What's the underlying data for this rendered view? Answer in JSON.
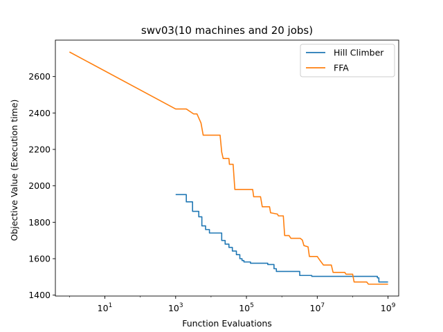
{
  "chart_data": {
    "type": "line",
    "title": "swv03(10 machines and 20 jobs)",
    "xlabel": "Function Evaluations",
    "ylabel": "Objective Value (Execution time)",
    "xscale": "log",
    "xlim": [
      0.4,
      2000000000
    ],
    "ylim": [
      1395,
      2800
    ],
    "xticks": [
      {
        "value": 10,
        "base": "10",
        "exp": "1"
      },
      {
        "value": 1000,
        "base": "10",
        "exp": "3"
      },
      {
        "value": 100000,
        "base": "10",
        "exp": "5"
      },
      {
        "value": 10000000,
        "base": "10",
        "exp": "7"
      },
      {
        "value": 1000000000,
        "base": "10",
        "exp": "9"
      }
    ],
    "yticks": [
      1400,
      1600,
      1800,
      2000,
      2200,
      2400,
      2600
    ],
    "grid": false,
    "legend_position": "top-right",
    "series": [
      {
        "name": "Hill Climber",
        "color": "#1f77b4",
        "step": true,
        "points": [
          [
            1000,
            1952
          ],
          [
            2000,
            1912
          ],
          [
            3000,
            1860
          ],
          [
            4500,
            1830
          ],
          [
            5500,
            1780
          ],
          [
            7000,
            1760
          ],
          [
            9000,
            1741
          ],
          [
            20000,
            1700
          ],
          [
            25000,
            1680
          ],
          [
            32000,
            1662
          ],
          [
            40000,
            1642
          ],
          [
            52000,
            1622
          ],
          [
            65000,
            1600
          ],
          [
            75000,
            1590
          ],
          [
            85000,
            1582
          ],
          [
            130000,
            1575
          ],
          [
            400000,
            1568
          ],
          [
            600000,
            1545
          ],
          [
            700000,
            1530
          ],
          [
            3200000,
            1508
          ],
          [
            7000000,
            1503
          ],
          [
            90000000,
            1503
          ],
          [
            500000000,
            1495
          ],
          [
            550000000,
            1472
          ],
          [
            1000000000,
            1472
          ]
        ]
      },
      {
        "name": "FFA",
        "color": "#ff7f0e",
        "step": false,
        "points": [
          [
            1,
            2735
          ],
          [
            1000,
            2422
          ],
          [
            2000,
            2422
          ],
          [
            3200,
            2395
          ],
          [
            4000,
            2395
          ],
          [
            5200,
            2345
          ],
          [
            6000,
            2278
          ],
          [
            18000,
            2278
          ],
          [
            20000,
            2185
          ],
          [
            22000,
            2150
          ],
          [
            32000,
            2150
          ],
          [
            33000,
            2118
          ],
          [
            42000,
            2118
          ],
          [
            47000,
            1980
          ],
          [
            150000,
            1980
          ],
          [
            160000,
            1940
          ],
          [
            250000,
            1940
          ],
          [
            280000,
            1885
          ],
          [
            450000,
            1885
          ],
          [
            480000,
            1852
          ],
          [
            750000,
            1845
          ],
          [
            800000,
            1835
          ],
          [
            1100000,
            1835
          ],
          [
            1200000,
            1727
          ],
          [
            1600000,
            1727
          ],
          [
            1800000,
            1712
          ],
          [
            3300000,
            1712
          ],
          [
            3800000,
            1702
          ],
          [
            4200000,
            1672
          ],
          [
            5500000,
            1665
          ],
          [
            6000000,
            1612
          ],
          [
            10000000,
            1612
          ],
          [
            12000000,
            1590
          ],
          [
            15000000,
            1565
          ],
          [
            25000000,
            1565
          ],
          [
            28000000,
            1525
          ],
          [
            60000000,
            1525
          ],
          [
            65000000,
            1515
          ],
          [
            100000000,
            1515
          ],
          [
            110000000,
            1472
          ],
          [
            250000000,
            1472
          ],
          [
            280000000,
            1460
          ],
          [
            1000000000,
            1460
          ]
        ]
      }
    ]
  }
}
